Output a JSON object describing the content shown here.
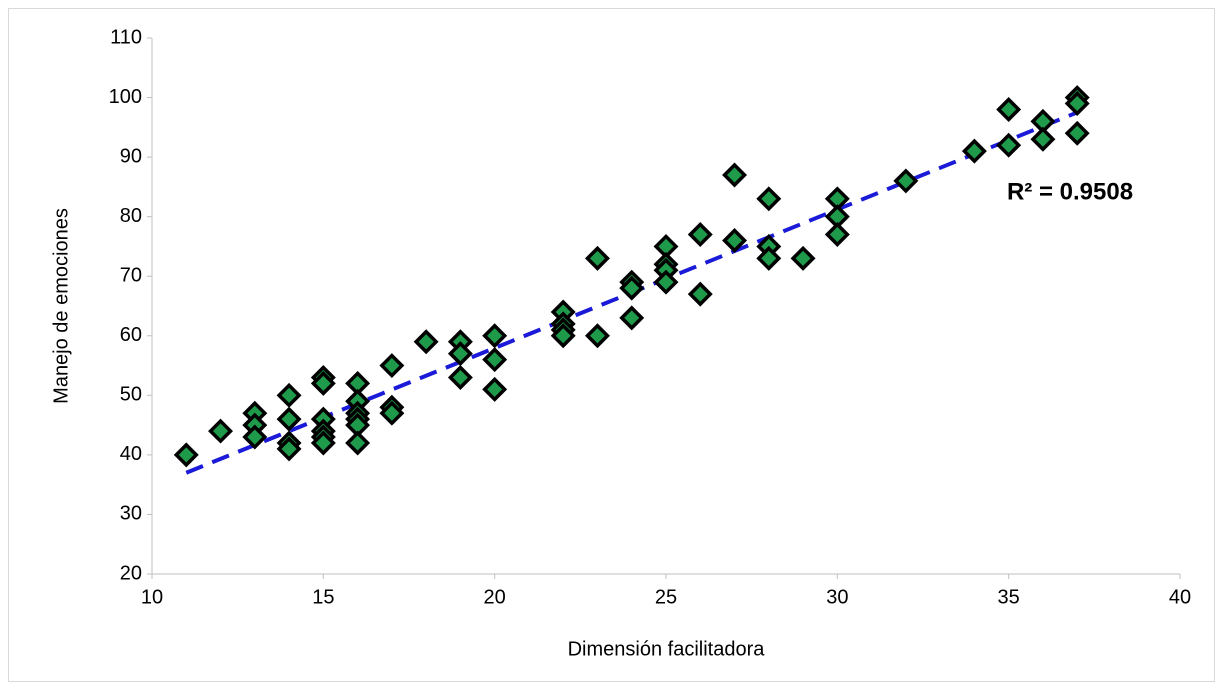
{
  "chart_data": {
    "type": "scatter",
    "x_label": "Dimensión facilitadora",
    "y_label": "Manejo de emociones",
    "annotation": "R² = 0.9508",
    "xlim": [
      10,
      40
    ],
    "xticks": [
      10,
      15,
      20,
      25,
      30,
      35,
      40
    ],
    "ylim": [
      20,
      110
    ],
    "yticks": [
      20,
      30,
      40,
      50,
      60,
      70,
      80,
      90,
      100,
      110
    ],
    "grid": false,
    "series": [
      {
        "color": "#1e9a4a",
        "x": [
          11,
          12,
          13,
          13,
          13,
          14,
          14,
          14,
          14,
          15,
          15,
          15,
          15,
          15,
          15,
          16,
          16,
          16,
          16,
          16,
          16,
          17,
          17,
          17,
          18,
          19,
          19,
          19,
          20,
          20,
          20,
          22,
          22,
          22,
          22,
          23,
          23,
          24,
          24,
          24,
          25,
          25,
          25,
          25,
          26,
          26,
          27,
          27,
          28,
          28,
          28,
          29,
          30,
          30,
          30,
          32,
          34,
          35,
          35,
          36,
          36,
          37,
          37,
          37
        ],
        "values": [
          40,
          44,
          47,
          45,
          43,
          50,
          46,
          42,
          41,
          53,
          52,
          46,
          44,
          43,
          42,
          52,
          49,
          47,
          46,
          45,
          42,
          55,
          48,
          47,
          59,
          59,
          57,
          53,
          60,
          56,
          51,
          64,
          62,
          61,
          60,
          73,
          60,
          69,
          68,
          63,
          75,
          72,
          71,
          69,
          77,
          67,
          87,
          76,
          83,
          75,
          73,
          73,
          83,
          80,
          77,
          86,
          91,
          98,
          92,
          96,
          93,
          100,
          99,
          94
        ]
      }
    ],
    "trendline": {
      "color": "#1a1ad8",
      "x": [
        11,
        37
      ],
      "values": [
        37,
        97.5
      ]
    }
  }
}
